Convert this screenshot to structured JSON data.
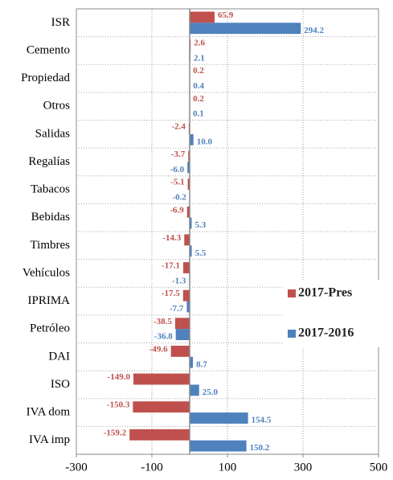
{
  "chart_data": {
    "type": "barh",
    "categories": [
      "ISR",
      "Cemento",
      "Propiedad",
      "Otros",
      "Salidas",
      "Regalías",
      "Tabacos",
      "Bebidas",
      "Timbres",
      "Vehículos",
      "IPRIMA",
      "Petróleo",
      "DAI",
      "ISO",
      "IVA dom",
      "IVA imp"
    ],
    "series": [
      {
        "name": "2017-Pres",
        "color": "#c0504d",
        "values": [
          65.9,
          2.6,
          0.2,
          0.2,
          -2.4,
          -3.7,
          -5.1,
          -6.9,
          -14.3,
          -17.1,
          -17.5,
          -38.5,
          -49.6,
          -149.0,
          -150.3,
          -159.2
        ],
        "value_labels": [
          "65.9",
          "2.6",
          "0.2",
          "0.2",
          "-2.4",
          "-3.7",
          "-5.1",
          "-6.9",
          "-14.3",
          "-17.1",
          "-17.5",
          "-38.5",
          "-49.6",
          "-149.0",
          "-150.3",
          "-159.2"
        ]
      },
      {
        "name": "2017-2016",
        "color": "#4f81bd",
        "values": [
          294.2,
          2.1,
          0.4,
          0.1,
          10.0,
          -6.0,
          -0.2,
          5.3,
          5.5,
          -1.3,
          -7.7,
          -36.8,
          8.7,
          25.0,
          154.5,
          150.2
        ],
        "value_labels": [
          "294.2",
          "2.1",
          "0.4",
          "0.1",
          "10.0",
          "-6.0",
          "-0.2",
          "5.3",
          "5.5",
          "-1.3",
          "-7.7",
          "-36.8",
          "8.7",
          "25.0",
          "154.5",
          "150.2"
        ]
      }
    ],
    "xlim": [
      -300,
      500
    ],
    "xticks": [
      -300,
      -100,
      100,
      300,
      500
    ],
    "grid": true,
    "legend": "right"
  }
}
